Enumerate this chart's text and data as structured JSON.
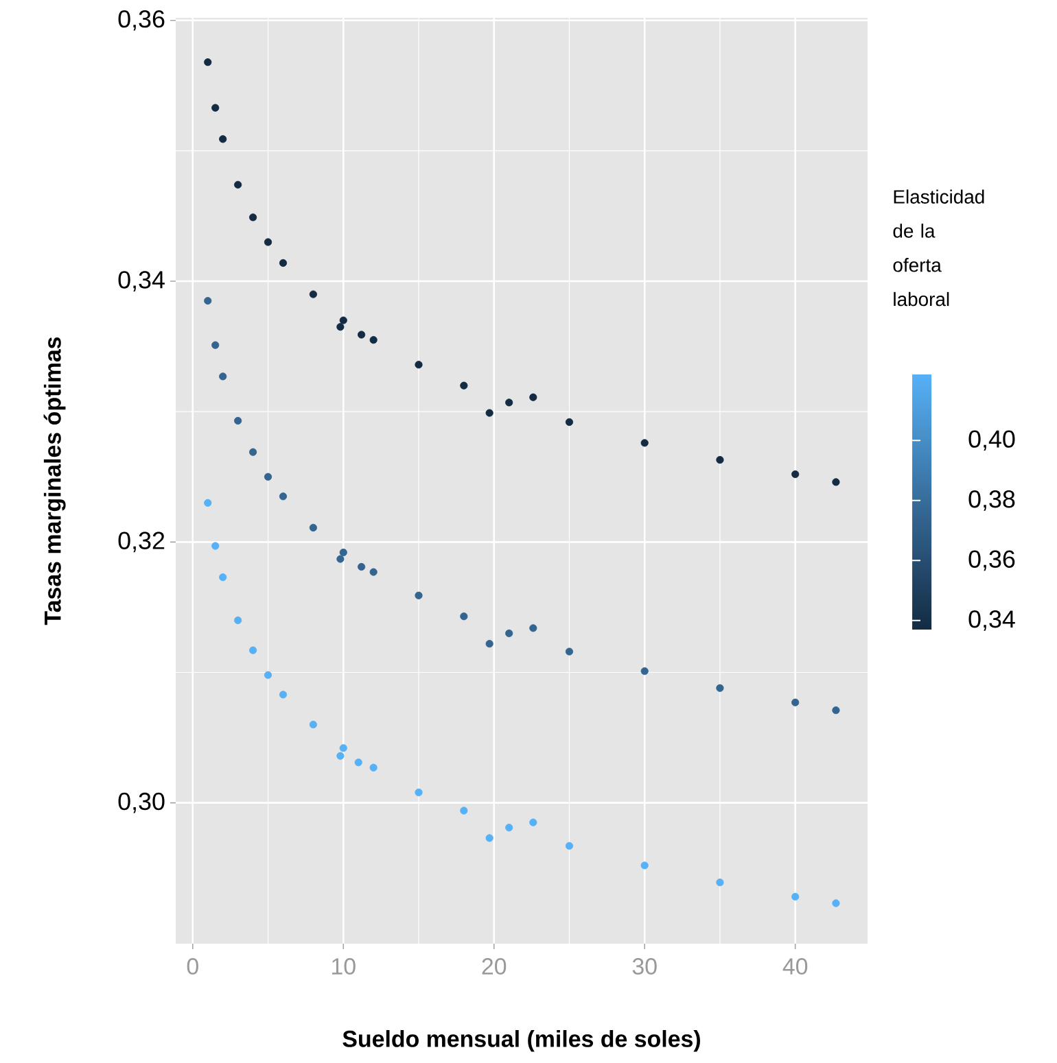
{
  "chart_data": {
    "type": "scatter",
    "xlabel": "Sueldo mensual (miles de soles)",
    "ylabel": "Tasas marginales óptimas",
    "clabel": "Elasticidad de la oferta laboral",
    "xlim": [
      -1.13,
      44.8
    ],
    "ylim": [
      0.2892,
      0.3602
    ],
    "xticks": [
      0,
      10,
      20,
      30,
      40
    ],
    "yticks": [
      {
        "value": 0.3,
        "label": "0,30"
      },
      {
        "value": 0.32,
        "label": "0,32"
      },
      {
        "value": 0.34,
        "label": "0,34"
      },
      {
        "value": 0.36,
        "label": "0,36"
      }
    ],
    "clim": [
      0.337,
      0.422
    ],
    "cticks": [
      {
        "value": 0.34,
        "label": "0,34"
      },
      {
        "value": 0.36,
        "label": "0,36"
      },
      {
        "value": 0.38,
        "label": "0,38"
      },
      {
        "value": 0.4,
        "label": "0,40"
      }
    ],
    "grid": true,
    "marker": "circle",
    "series": [
      {
        "color": "#132b43",
        "x": [
          1,
          1.5,
          2,
          3,
          4,
          5,
          6,
          8,
          9.8,
          10,
          11.2,
          12,
          15,
          18,
          19.7,
          21,
          22.6,
          25,
          30,
          35,
          40,
          42.7
        ],
        "values": [
          0.3568,
          0.3533,
          0.3509,
          0.3474,
          0.3449,
          0.343,
          0.3414,
          0.339,
          0.3365,
          0.337,
          0.3359,
          0.3355,
          0.3336,
          0.332,
          0.3299,
          0.3307,
          0.3311,
          0.3292,
          0.3276,
          0.3263,
          0.3252,
          0.3246
        ],
        "cvalues": [
          0.337,
          0.337,
          0.337,
          0.337,
          0.337,
          0.337,
          0.337,
          0.337,
          0.337,
          0.337,
          0.337,
          0.337,
          0.337,
          0.337,
          0.337,
          0.337,
          0.337,
          0.337,
          0.337,
          0.337,
          0.337,
          0.337
        ]
      },
      {
        "color": "#336590",
        "x": [
          1,
          1.5,
          2,
          3,
          4,
          5,
          6,
          8,
          9.8,
          10,
          11.2,
          12,
          15,
          18,
          19.7,
          21,
          22.6,
          25,
          30,
          35,
          40,
          42.7
        ],
        "values": [
          0.3385,
          0.3351,
          0.3327,
          0.3293,
          0.3269,
          0.325,
          0.3235,
          0.3211,
          0.3187,
          0.3192,
          0.3181,
          0.3177,
          0.3159,
          0.3143,
          0.3122,
          0.313,
          0.3134,
          0.3116,
          0.3101,
          0.3088,
          0.3077,
          0.3071
        ],
        "cvalues": [
          0.375,
          0.375,
          0.375,
          0.375,
          0.375,
          0.375,
          0.375,
          0.375,
          0.375,
          0.375,
          0.375,
          0.375,
          0.375,
          0.375,
          0.375,
          0.375,
          0.375,
          0.375,
          0.375,
          0.375,
          0.375,
          0.375
        ]
      },
      {
        "color": "#56b1f7",
        "x": [
          1,
          1.5,
          2,
          3,
          4,
          5,
          6,
          8,
          9.8,
          10,
          11.0,
          12,
          15,
          18,
          19.7,
          21,
          22.6,
          25,
          30,
          35,
          40,
          42.7
        ],
        "values": [
          0.323,
          0.3197,
          0.3173,
          0.314,
          0.3117,
          0.3098,
          0.3083,
          0.306,
          0.3036,
          0.3042,
          0.3031,
          0.3027,
          0.3008,
          0.2994,
          0.2973,
          0.2981,
          0.2985,
          0.2967,
          0.2952,
          0.2939,
          0.2928,
          0.2923
        ],
        "cvalues": [
          0.422,
          0.422,
          0.422,
          0.422,
          0.422,
          0.422,
          0.422,
          0.422,
          0.422,
          0.422,
          0.422,
          0.422,
          0.422,
          0.422,
          0.422,
          0.422,
          0.422,
          0.422,
          0.422,
          0.422,
          0.422,
          0.422
        ]
      }
    ]
  }
}
